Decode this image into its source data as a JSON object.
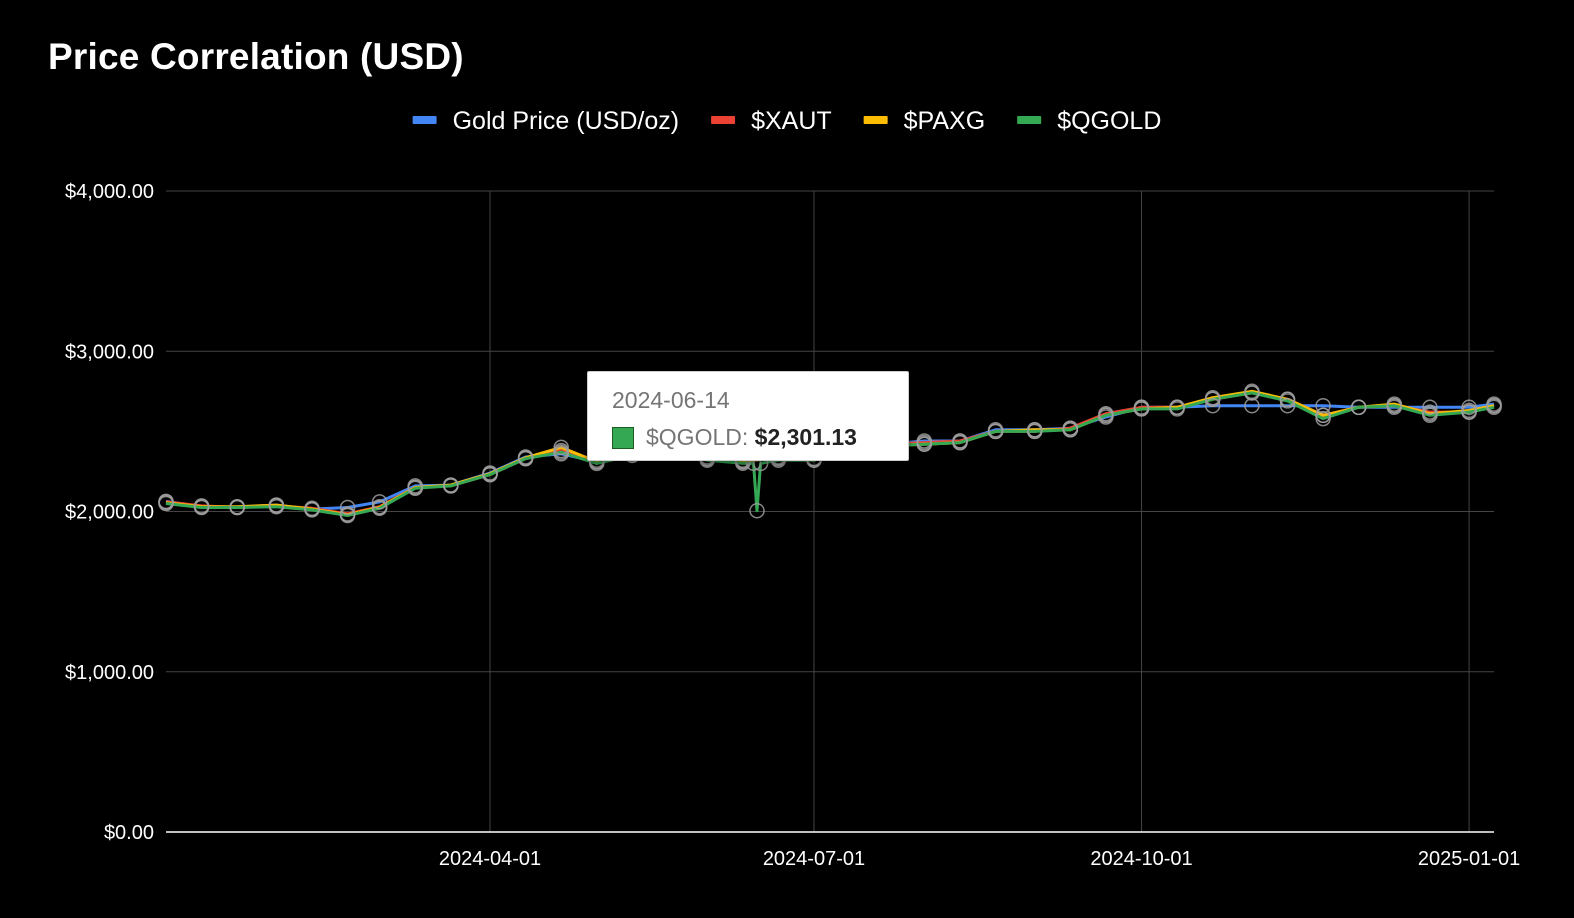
{
  "chart_data": {
    "type": "line",
    "title": "Price Correlation (USD)",
    "xlabel": "",
    "ylabel": "",
    "x_range": [
      "2024-01-01",
      "2025-01-08"
    ],
    "ylim": [
      0,
      4000
    ],
    "y_ticks": [
      0,
      1000,
      2000,
      3000,
      4000
    ],
    "y_tick_labels": [
      "$0.00",
      "$1,000.00",
      "$2,000.00",
      "$3,000.00",
      "$4,000.00"
    ],
    "x_ticks": [
      "2024-04-01",
      "2024-07-01",
      "2024-10-01",
      "2025-01-01"
    ],
    "x_tick_labels": [
      "2024-04-01",
      "2024-07-01",
      "2024-10-01",
      "2025-01-01"
    ],
    "grid": true,
    "legend_position": "top",
    "series": [
      {
        "name": "Gold Price (USD/oz)",
        "color": "#4285f4",
        "points": [
          [
            "2024-01-01",
            2063
          ],
          [
            "2024-01-11",
            2030
          ],
          [
            "2024-01-21",
            2028
          ],
          [
            "2024-02-01",
            2040
          ],
          [
            "2024-02-11",
            2015
          ],
          [
            "2024-02-21",
            2025
          ],
          [
            "2024-03-01",
            2060
          ],
          [
            "2024-03-11",
            2160
          ],
          [
            "2024-03-21",
            2165
          ],
          [
            "2024-04-01",
            2240
          ],
          [
            "2024-04-11",
            2340
          ],
          [
            "2024-04-21",
            2360
          ],
          [
            "2024-05-01",
            2310
          ],
          [
            "2024-05-11",
            2360
          ],
          [
            "2024-05-21",
            2420
          ],
          [
            "2024-06-01",
            2340
          ],
          [
            "2024-06-11",
            2320
          ],
          [
            "2024-06-21",
            2330
          ],
          [
            "2024-07-01",
            2330
          ],
          [
            "2024-07-11",
            2400
          ],
          [
            "2024-07-21",
            2420
          ],
          [
            "2024-08-01",
            2440
          ],
          [
            "2024-08-11",
            2440
          ],
          [
            "2024-08-21",
            2510
          ],
          [
            "2024-09-01",
            2510
          ],
          [
            "2024-09-11",
            2520
          ],
          [
            "2024-09-21",
            2590
          ],
          [
            "2024-10-01",
            2650
          ],
          [
            "2024-10-11",
            2650
          ],
          [
            "2024-10-21",
            2660
          ],
          [
            "2024-11-01",
            2660
          ],
          [
            "2024-11-11",
            2660
          ],
          [
            "2024-11-21",
            2660
          ],
          [
            "2024-12-01",
            2650
          ],
          [
            "2024-12-11",
            2650
          ],
          [
            "2024-12-21",
            2650
          ],
          [
            "2025-01-01",
            2650
          ],
          [
            "2025-01-08",
            2670
          ]
        ]
      },
      {
        "name": "$XAUT",
        "color": "#ea4335",
        "points": [
          [
            "2024-01-01",
            2060
          ],
          [
            "2024-01-11",
            2035
          ],
          [
            "2024-01-21",
            2025
          ],
          [
            "2024-02-01",
            2035
          ],
          [
            "2024-02-11",
            2020
          ],
          [
            "2024-02-21",
            1985
          ],
          [
            "2024-03-01",
            2030
          ],
          [
            "2024-03-11",
            2150
          ],
          [
            "2024-03-21",
            2160
          ],
          [
            "2024-04-01",
            2230
          ],
          [
            "2024-04-11",
            2330
          ],
          [
            "2024-04-21",
            2380
          ],
          [
            "2024-05-01",
            2320
          ],
          [
            "2024-05-11",
            2350
          ],
          [
            "2024-05-21",
            2410
          ],
          [
            "2024-06-01",
            2330
          ],
          [
            "2024-06-11",
            2310
          ],
          [
            "2024-06-21",
            2340
          ],
          [
            "2024-07-01",
            2330
          ],
          [
            "2024-07-11",
            2410
          ],
          [
            "2024-07-21",
            2420
          ],
          [
            "2024-08-01",
            2430
          ],
          [
            "2024-08-11",
            2440
          ],
          [
            "2024-08-21",
            2500
          ],
          [
            "2024-09-01",
            2500
          ],
          [
            "2024-09-11",
            2520
          ],
          [
            "2024-09-21",
            2610
          ],
          [
            "2024-10-01",
            2650
          ],
          [
            "2024-10-11",
            2650
          ],
          [
            "2024-10-21",
            2700
          ],
          [
            "2024-11-01",
            2740
          ],
          [
            "2024-11-11",
            2700
          ],
          [
            "2024-11-21",
            2600
          ],
          [
            "2024-12-01",
            2650
          ],
          [
            "2024-12-11",
            2660
          ],
          [
            "2024-12-21",
            2620
          ],
          [
            "2025-01-01",
            2620
          ],
          [
            "2025-01-08",
            2660
          ]
        ]
      },
      {
        "name": "$PAXG",
        "color": "#fbbc04",
        "points": [
          [
            "2024-01-01",
            2055
          ],
          [
            "2024-01-11",
            2030
          ],
          [
            "2024-01-21",
            2030
          ],
          [
            "2024-02-01",
            2040
          ],
          [
            "2024-02-11",
            2015
          ],
          [
            "2024-02-21",
            1980
          ],
          [
            "2024-03-01",
            2025
          ],
          [
            "2024-03-11",
            2150
          ],
          [
            "2024-03-21",
            2165
          ],
          [
            "2024-04-01",
            2235
          ],
          [
            "2024-04-11",
            2335
          ],
          [
            "2024-04-21",
            2400
          ],
          [
            "2024-05-01",
            2310
          ],
          [
            "2024-05-11",
            2360
          ],
          [
            "2024-05-21",
            2400
          ],
          [
            "2024-06-01",
            2330
          ],
          [
            "2024-06-11",
            2315
          ],
          [
            "2024-06-21",
            2335
          ],
          [
            "2024-07-01",
            2320
          ],
          [
            "2024-07-11",
            2400
          ],
          [
            "2024-07-21",
            2410
          ],
          [
            "2024-08-01",
            2420
          ],
          [
            "2024-08-11",
            2430
          ],
          [
            "2024-08-21",
            2500
          ],
          [
            "2024-09-01",
            2510
          ],
          [
            "2024-09-11",
            2510
          ],
          [
            "2024-09-21",
            2600
          ],
          [
            "2024-10-01",
            2640
          ],
          [
            "2024-10-11",
            2650
          ],
          [
            "2024-10-21",
            2710
          ],
          [
            "2024-11-01",
            2750
          ],
          [
            "2024-11-11",
            2700
          ],
          [
            "2024-11-21",
            2600
          ],
          [
            "2024-12-01",
            2650
          ],
          [
            "2024-12-11",
            2670
          ],
          [
            "2024-12-21",
            2610
          ],
          [
            "2025-01-01",
            2630
          ],
          [
            "2025-01-08",
            2660
          ]
        ]
      },
      {
        "name": "$QGOLD",
        "color": "#34a853",
        "points": [
          [
            "2024-01-01",
            2050
          ],
          [
            "2024-01-11",
            2025
          ],
          [
            "2024-01-21",
            2025
          ],
          [
            "2024-02-01",
            2030
          ],
          [
            "2024-02-11",
            2010
          ],
          [
            "2024-02-21",
            1975
          ],
          [
            "2024-03-01",
            2020
          ],
          [
            "2024-03-11",
            2145
          ],
          [
            "2024-03-21",
            2160
          ],
          [
            "2024-04-01",
            2230
          ],
          [
            "2024-04-11",
            2330
          ],
          [
            "2024-04-21",
            2370
          ],
          [
            "2024-05-01",
            2300
          ],
          [
            "2024-05-11",
            2350
          ],
          [
            "2024-05-21",
            2400
          ],
          [
            "2024-06-01",
            2320
          ],
          [
            "2024-06-11",
            2301.13
          ],
          [
            "2024-06-14",
            2301.13
          ],
          [
            "2024-06-15",
            2005
          ],
          [
            "2024-06-16",
            2300
          ],
          [
            "2024-06-21",
            2320
          ],
          [
            "2024-07-01",
            2320
          ],
          [
            "2024-07-11",
            2400
          ],
          [
            "2024-07-21",
            2410
          ],
          [
            "2024-08-01",
            2420
          ],
          [
            "2024-08-11",
            2430
          ],
          [
            "2024-08-21",
            2500
          ],
          [
            "2024-09-01",
            2500
          ],
          [
            "2024-09-11",
            2510
          ],
          [
            "2024-09-21",
            2600
          ],
          [
            "2024-10-01",
            2640
          ],
          [
            "2024-10-11",
            2640
          ],
          [
            "2024-10-21",
            2700
          ],
          [
            "2024-11-01",
            2740
          ],
          [
            "2024-11-11",
            2690
          ],
          [
            "2024-11-21",
            2580
          ],
          [
            "2024-12-01",
            2650
          ],
          [
            "2024-12-11",
            2660
          ],
          [
            "2024-12-21",
            2600
          ],
          [
            "2025-01-01",
            2620
          ],
          [
            "2025-01-08",
            2650
          ]
        ]
      }
    ],
    "tooltip": {
      "date": "2024-06-14",
      "series": "$QGOLD",
      "label": "$QGOLD:",
      "value": "$2,301.13",
      "y": 2301.13,
      "color": "#34a853"
    }
  }
}
